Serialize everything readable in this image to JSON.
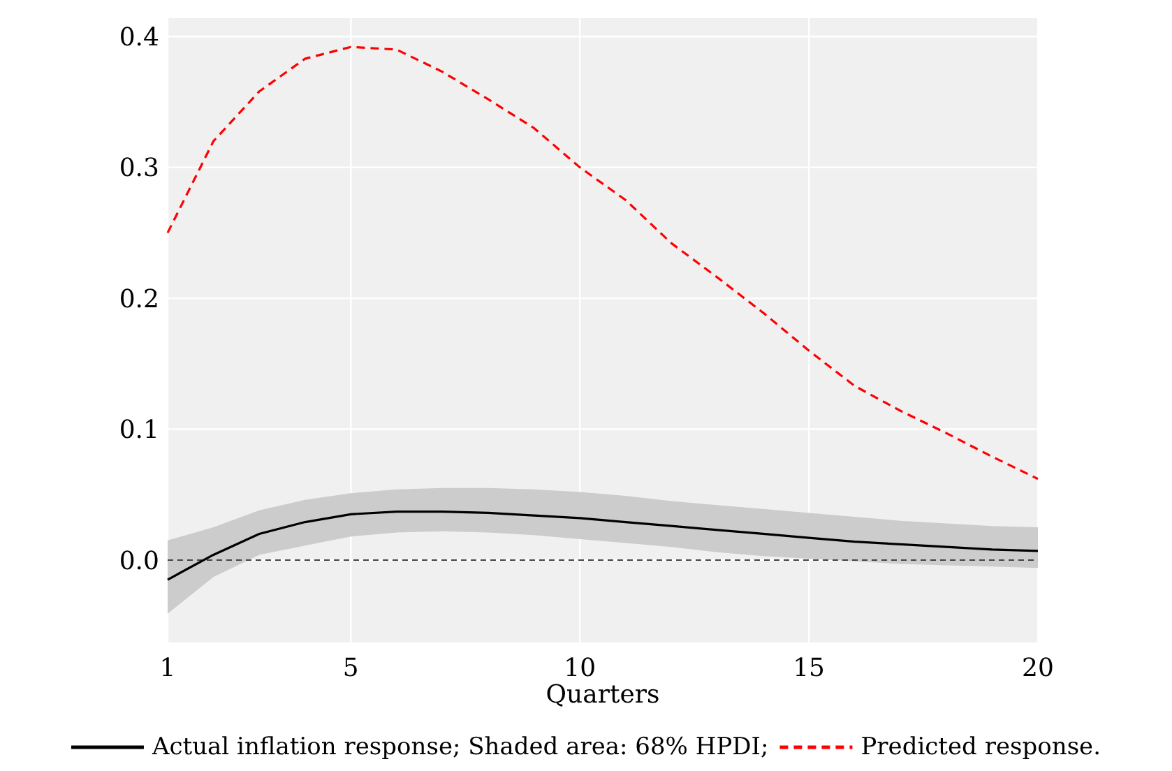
{
  "chart_data": {
    "type": "line",
    "xlabel": "Quarters",
    "x": [
      1,
      2,
      3,
      4,
      5,
      6,
      7,
      8,
      9,
      10,
      11,
      12,
      13,
      14,
      15,
      16,
      17,
      18,
      19,
      20
    ],
    "xlim": [
      1,
      20
    ],
    "xticks": [
      1,
      5,
      10,
      15,
      20
    ],
    "ylim": [
      -0.063,
      0.414
    ],
    "yticks": [
      {
        "value": 0,
        "label": "0.0"
      },
      0.1,
      0.2,
      0.3,
      0.4
    ],
    "grid": true,
    "legend": "bottom",
    "series": [
      {
        "name": "Actual inflation response; Shaded area: 68% HPDI;",
        "color": "#000000",
        "line_style": "solid",
        "values": [
          -0.015,
          0.004,
          0.02,
          0.029,
          0.035,
          0.037,
          0.037,
          0.036,
          0.034,
          0.032,
          0.029,
          0.026,
          0.023,
          0.02,
          0.017,
          0.014,
          0.012,
          0.01,
          0.008,
          0.007
        ],
        "lower": [
          -0.041,
          -0.013,
          0.004,
          0.011,
          0.018,
          0.021,
          0.022,
          0.021,
          0.019,
          0.016,
          0.013,
          0.01,
          0.006,
          0.003,
          0.001,
          -0.001,
          -0.003,
          -0.004,
          -0.005,
          -0.006
        ],
        "upper": [
          0.015,
          0.025,
          0.038,
          0.046,
          0.051,
          0.054,
          0.055,
          0.055,
          0.054,
          0.052,
          0.049,
          0.045,
          0.042,
          0.039,
          0.036,
          0.033,
          0.03,
          0.028,
          0.026,
          0.025
        ]
      },
      {
        "name": "Predicted response.",
        "color": "#ff0000",
        "line_style": "dashed",
        "values": [
          0.25,
          0.32,
          0.358,
          0.383,
          0.392,
          0.39,
          0.373,
          0.352,
          0.33,
          0.3,
          0.275,
          0.242,
          0.216,
          0.189,
          0.16,
          0.133,
          0.114,
          0.097,
          0.079,
          0.062
        ]
      }
    ],
    "ref_lines": [
      {
        "axis": "y",
        "value": 0,
        "color": "#444444",
        "line_style": "dashed"
      }
    ]
  }
}
